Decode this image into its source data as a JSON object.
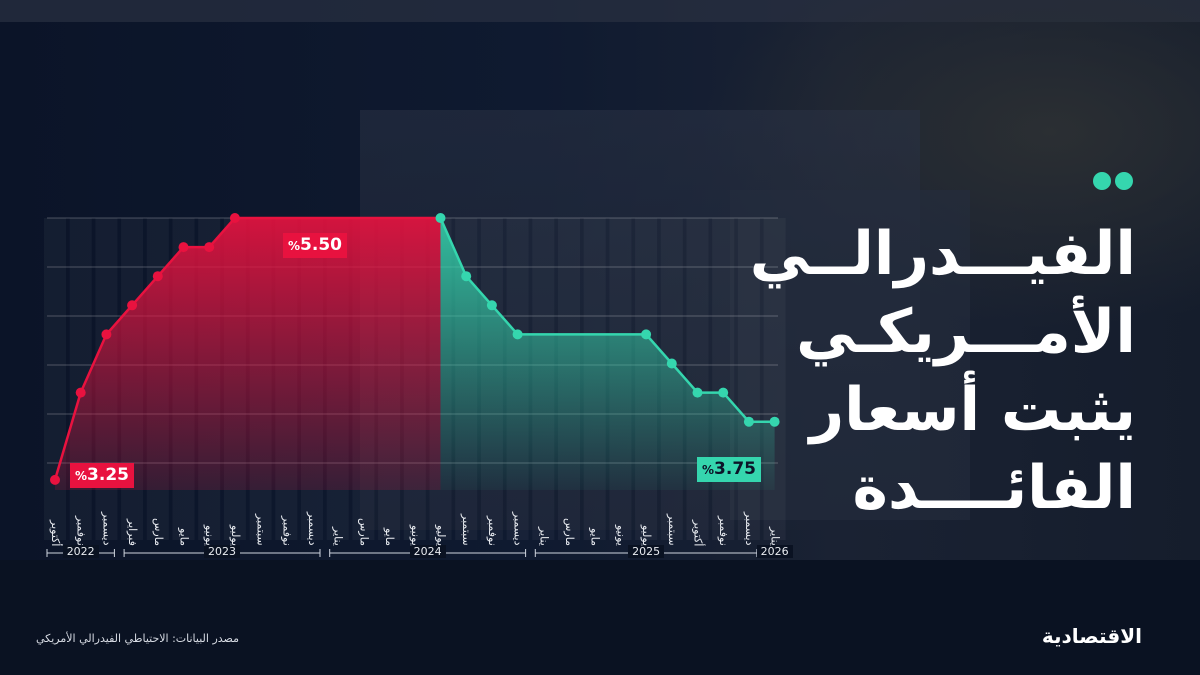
{
  "title_lines": [
    "الفيـــدرالــي",
    "الأمـــريكـي",
    "يثبت أسعار",
    "الفائــــدة"
  ],
  "source": "مصدر البيانات: الاحتياطي الفيدرالي الأمريكي",
  "logo": "الاقتصادية",
  "colors": {
    "rising": "#e8123f",
    "falling": "#35d6ae",
    "background": "#0c1529"
  },
  "chart_data": {
    "type": "line",
    "ylabel": "",
    "xlabel": "",
    "grid": true,
    "unit": "%",
    "years": [
      {
        "label": "2022",
        "count": 3
      },
      {
        "label": "2023",
        "count": 8
      },
      {
        "label": "2024",
        "count": 8
      },
      {
        "label": "2025",
        "count": 9
      },
      {
        "label": "2026",
        "count": 1
      }
    ],
    "categories": [
      "أكتوبر",
      "نوفمبر",
      "ديسمبر",
      "فبراير",
      "مارس",
      "مايو",
      "يونيو",
      "يوليو",
      "سبتمبر",
      "نوفمبر",
      "ديسمبر",
      "يناير",
      "مارس",
      "مايو",
      "يونيو",
      "يوليو",
      "سبتمبر",
      "نوفمبر",
      "ديسمبر",
      "يناير",
      "مارس",
      "مايو",
      "يونيو",
      "يوليو",
      "سبتمبر",
      "أكتوبر",
      "نوفمبر",
      "ديسمبر",
      "يناير"
    ],
    "values": [
      3.25,
      4.0,
      4.5,
      4.75,
      5.0,
      5.25,
      5.25,
      5.5,
      5.5,
      5.5,
      5.5,
      5.5,
      5.5,
      5.5,
      5.5,
      5.5,
      5.0,
      4.75,
      4.5,
      4.5,
      4.5,
      4.5,
      4.5,
      4.5,
      4.25,
      4.0,
      4.0,
      3.75,
      3.75
    ],
    "peak_index": 15,
    "annotations": [
      {
        "text": "3.25",
        "prefix": "%",
        "index": 0
      },
      {
        "text": "5.50",
        "prefix": "%",
        "index": 10
      },
      {
        "text": "3.75",
        "prefix": "%",
        "index": 28
      }
    ]
  }
}
